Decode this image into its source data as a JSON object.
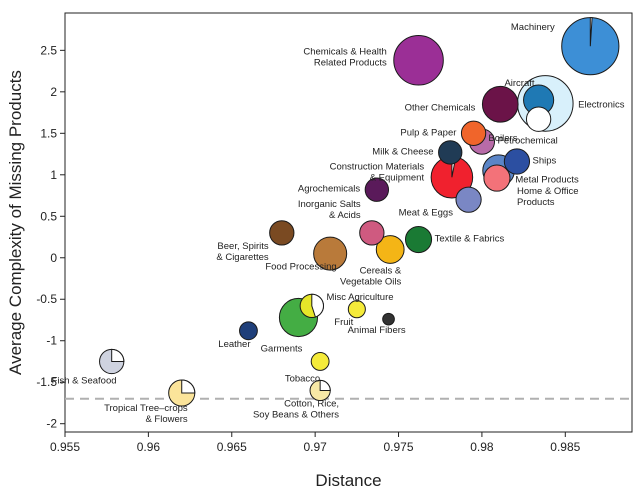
{
  "chart_data": {
    "type": "scatter",
    "title": "",
    "xlabel": "Distance",
    "ylabel": "Average Complexity of Missing Products",
    "xlim": [
      0.955,
      0.989
    ],
    "ylim": [
      -2.1,
      2.95
    ],
    "xticks": [
      "0.955",
      "0.96",
      "0.965",
      "0.97",
      "0.975",
      "0.98",
      "0.985"
    ],
    "xtick_values": [
      0.955,
      0.96,
      0.965,
      0.97,
      0.975,
      0.98,
      0.985
    ],
    "yticks": [
      "2.5",
      "2",
      "1.5",
      "1",
      "0.5",
      "0",
      "-0.5",
      "-1",
      "-1.5",
      "-2"
    ],
    "ytick_values": [
      2.5,
      2,
      1.5,
      1,
      0.5,
      0,
      -0.5,
      -1,
      -1.5,
      -2
    ],
    "reference_line": {
      "y": -1.7,
      "style": "dashed",
      "color": "#b0b0b0"
    },
    "grid": false,
    "legend": "none",
    "points": [
      {
        "name": "Machinery",
        "lines": [
          "Machinery"
        ],
        "x": 0.9865,
        "y": 2.55,
        "size": 3.6,
        "color": "#3d8fd6",
        "share": 0.01,
        "label_side": "left",
        "ldx": -4,
        "ldy": -16
      },
      {
        "name": "Chemicals & Health Related Products",
        "lines": [
          "Chemicals & Health",
          "Related Products"
        ],
        "x": 0.9762,
        "y": 2.38,
        "size": 2.7,
        "color": "#9b2f96",
        "share": 0,
        "label_side": "left",
        "ldx": -4,
        "ldy": -6
      },
      {
        "name": "Electronics",
        "lines": [
          "Electronics"
        ],
        "x": 0.9838,
        "y": 1.86,
        "size": 3.4,
        "color": "#d8f0fb",
        "share": 0,
        "label_side": "right",
        "ldx": 2,
        "ldy": 4
      },
      {
        "name": "Aircraft",
        "lines": [
          "Aircraft"
        ],
        "x": 0.9834,
        "y": 1.9,
        "size": 1.0,
        "color": "#1f79b4",
        "share": 0,
        "label_side": "left",
        "ldx": 14,
        "ldy": -14
      },
      {
        "name": "Other Chemicals",
        "lines": [
          "Other Chemicals"
        ],
        "x": 0.9811,
        "y": 1.85,
        "size": 1.4,
        "color": "#6b1348",
        "share": 0,
        "label_side": "left",
        "ldx": -4,
        "ldy": 6
      },
      {
        "name": "Boilers",
        "lines": [
          "Boilers"
        ],
        "x": 0.9834,
        "y": 1.67,
        "size": 0.65,
        "color": "#ffffff",
        "share": 0,
        "label_side": "left",
        "ldx": -6,
        "ldy": 22
      },
      {
        "name": "Pulp & Paper",
        "lines": [
          "Pulp & Paper"
        ],
        "x": 0.9795,
        "y": 1.5,
        "size": 0.65,
        "color": "#f0652b",
        "share": 0,
        "label_side": "left",
        "ldx": -2,
        "ldy": 2
      },
      {
        "name": "Petrochemical",
        "lines": [
          "Petrochemical"
        ],
        "x": 0.98,
        "y": 1.4,
        "size": 0.7,
        "color": "#b86ba8",
        "share": 0,
        "label_side": "right",
        "ldx": 0,
        "ldy": 2
      },
      {
        "name": "Milk & Cheese",
        "lines": [
          "Milk & Cheese"
        ],
        "x": 0.9781,
        "y": 1.27,
        "size": 0.6,
        "color": "#203b55",
        "share": 0,
        "label_side": "left",
        "ldx": -2,
        "ldy": 2
      },
      {
        "name": "Ships",
        "lines": [
          "Ships"
        ],
        "x": 0.9821,
        "y": 1.16,
        "size": 0.7,
        "color": "#2c4fa1",
        "share": 0,
        "label_side": "right",
        "ldx": 0,
        "ldy": 2
      },
      {
        "name": "Metal Products",
        "lines": [
          "Metal Products"
        ],
        "x": 0.981,
        "y": 1.05,
        "size": 1.1,
        "color": "#5b85c7",
        "share": 0,
        "label_side": "right",
        "ldx": -2,
        "ldy": 12
      },
      {
        "name": "Construction Materials & Equipment",
        "lines": [
          "Construction Materials",
          "& Equipment"
        ],
        "x": 0.9782,
        "y": 0.97,
        "size": 1.9,
        "color": "#f0212e",
        "share": 0.03,
        "label_side": "left",
        "ldx": -4,
        "ldy": -8
      },
      {
        "name": "Home & Office Products",
        "lines": [
          "Home & Office",
          "Products"
        ],
        "x": 0.9809,
        "y": 0.96,
        "size": 0.75,
        "color": "#f37279",
        "share": 0,
        "label_side": "right",
        "ldx": 4,
        "ldy": 16
      },
      {
        "name": "Agrochemicals",
        "lines": [
          "Agrochemicals"
        ],
        "x": 0.9737,
        "y": 0.82,
        "size": 0.6,
        "color": "#5a1a5a",
        "share": 0,
        "label_side": "left",
        "ldx": -2,
        "ldy": 2
      },
      {
        "name": "Meat & Eggs",
        "lines": [
          "Meat & Eggs"
        ],
        "x": 0.9792,
        "y": 0.7,
        "size": 0.7,
        "color": "#7a87c4",
        "share": 0,
        "label_side": "left",
        "ldx": 0,
        "ldy": 16
      },
      {
        "name": "Inorganic Salts & Acids",
        "lines": [
          "Inorganic Salts",
          "& Acids"
        ],
        "x": 0.9734,
        "y": 0.3,
        "size": 0.65,
        "color": "#cf5a80",
        "share": 0,
        "label_side": "left",
        "ldx": 4,
        "ldy": -26
      },
      {
        "name": "Textile & Fabrics",
        "lines": [
          "Textile & Fabrics"
        ],
        "x": 0.9762,
        "y": 0.22,
        "size": 0.75,
        "color": "#1a7a34",
        "share": 0,
        "label_side": "right",
        "ldx": 0,
        "ldy": 2
      },
      {
        "name": "Beer, Spirits & Cigarettes",
        "lines": [
          "Beer, Spirits",
          "& Cigarettes"
        ],
        "x": 0.968,
        "y": 0.3,
        "size": 0.65,
        "color": "#7a4a22",
        "share": 0,
        "label_side": "left",
        "ldx": 2,
        "ldy": 16
      },
      {
        "name": "Food Processing",
        "lines": [
          "Food Processing"
        ],
        "x": 0.9709,
        "y": 0.05,
        "size": 1.2,
        "color": "#b97a3a",
        "share": 0,
        "label_side": "left",
        "ldx": 26,
        "ldy": 16
      },
      {
        "name": "Cereals & Vegetable Oils",
        "lines": [
          "Cereals &",
          "Vegetable Oils"
        ],
        "x": 0.9745,
        "y": 0.1,
        "size": 0.85,
        "color": "#f4b516",
        "share": 0,
        "label_side": "left",
        "ldx": 28,
        "ldy": 24
      },
      {
        "name": "Misc Agriculture",
        "lines": [
          "Misc Agriculture"
        ],
        "x": 0.9698,
        "y": -0.58,
        "size": 0.6,
        "color": "#e6e629",
        "share": 0.45,
        "label_side": "right",
        "ldx": 0,
        "ldy": -6
      },
      {
        "name": "Fruit",
        "lines": [
          "Fruit"
        ],
        "x": 0.9725,
        "y": -0.62,
        "size": 0.32,
        "color": "#f5eb3a",
        "share": 0,
        "label_side": "left",
        "ldx": 8,
        "ldy": 16
      },
      {
        "name": "Garments",
        "lines": [
          "Garments"
        ],
        "x": 0.969,
        "y": -0.72,
        "size": 1.6,
        "color": "#44ad44",
        "share": 0,
        "label_side": "left",
        "ldx": 26,
        "ldy": 34
      },
      {
        "name": "Animal Fibers",
        "lines": [
          "Animal Fibers"
        ],
        "x": 0.9744,
        "y": -0.74,
        "size": 0.15,
        "color": "#333333",
        "share": 0,
        "label_side": "left",
        "ldx": 26,
        "ldy": 14
      },
      {
        "name": "Leather",
        "lines": [
          "Leather"
        ],
        "x": 0.966,
        "y": -0.88,
        "size": 0.35,
        "color": "#1f3f7a",
        "share": 0,
        "label_side": "left",
        "ldx": 14,
        "ldy": 16
      },
      {
        "name": "Tobacco",
        "lines": [
          "Tobacco"
        ],
        "x": 0.9703,
        "y": -1.25,
        "size": 0.35,
        "color": "#f5eb3a",
        "share": 0,
        "label_side": "left",
        "ldx": 12,
        "ldy": 20
      },
      {
        "name": "Fish & Seafood",
        "lines": [
          "Fish & Seafood"
        ],
        "x": 0.9578,
        "y": -1.25,
        "size": 0.65,
        "color": "#cfd3e0",
        "share": 0.25,
        "label_side": "left",
        "ldx": 20,
        "ldy": 22
      },
      {
        "name": "Cotton, Rice, Soy Beans & Others",
        "lines": [
          "Cotton, Rice,",
          "Soy Beans & Others"
        ],
        "x": 0.9703,
        "y": -1.6,
        "size": 0.45,
        "color": "#f7e9a6",
        "share": 0.25,
        "label_side": "left",
        "ldx": 32,
        "ldy": 16
      },
      {
        "name": "Tropical Tree-crops & Flowers",
        "lines": [
          "Tropical Tree–crops",
          "& Flowers"
        ],
        "x": 0.962,
        "y": -1.63,
        "size": 0.75,
        "color": "#fbe49a",
        "share": 0.25,
        "label_side": "left",
        "ldx": 22,
        "ldy": 18
      }
    ]
  }
}
